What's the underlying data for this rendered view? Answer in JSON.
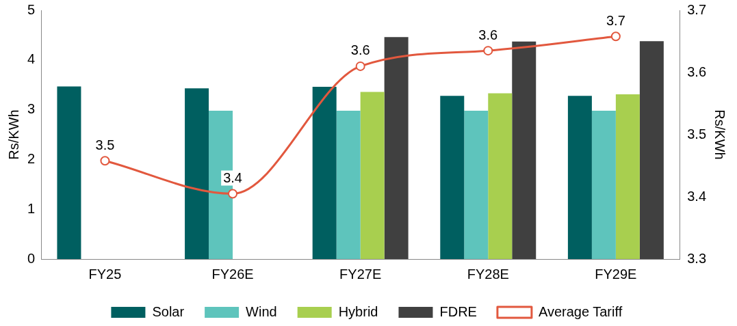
{
  "chart_data": {
    "type": "bar",
    "ylabel": "Rs/KWh",
    "y2label": "Rs/KWh",
    "categories": [
      "FY25",
      "FY26E",
      "FY27E",
      "FY28E",
      "FY29E"
    ],
    "series": [
      {
        "name": "Solar",
        "color": "#005f60",
        "values": [
          3.47,
          3.43,
          3.46,
          3.28,
          3.28
        ]
      },
      {
        "name": "Wind",
        "color": "#5ec4bc",
        "values": [
          null,
          2.98,
          2.98,
          2.98,
          2.98
        ]
      },
      {
        "name": "Hybrid",
        "color": "#a8cf4f",
        "values": [
          null,
          null,
          3.36,
          3.33,
          3.31
        ]
      },
      {
        "name": "FDRE",
        "color": "#404040",
        "values": [
          null,
          null,
          4.46,
          4.37,
          4.38
        ]
      },
      {
        "name": "Average Tariff",
        "type": "line",
        "axis": "y2",
        "color": "#e2583e",
        "values": [
          3.458,
          3.405,
          3.61,
          3.635,
          3.658
        ],
        "value_labels": [
          "3.5",
          "3.4",
          "3.6",
          "3.6",
          "3.7"
        ]
      }
    ],
    "ylim": [
      0,
      5
    ],
    "yticks": [
      0,
      1,
      2,
      3,
      4,
      5
    ],
    "y2lim": [
      3.3,
      3.7
    ],
    "y2ticks": [
      3.3,
      3.4,
      3.5,
      3.6,
      3.7
    ],
    "grid": false,
    "legend": "bottom",
    "marker": "circle"
  }
}
